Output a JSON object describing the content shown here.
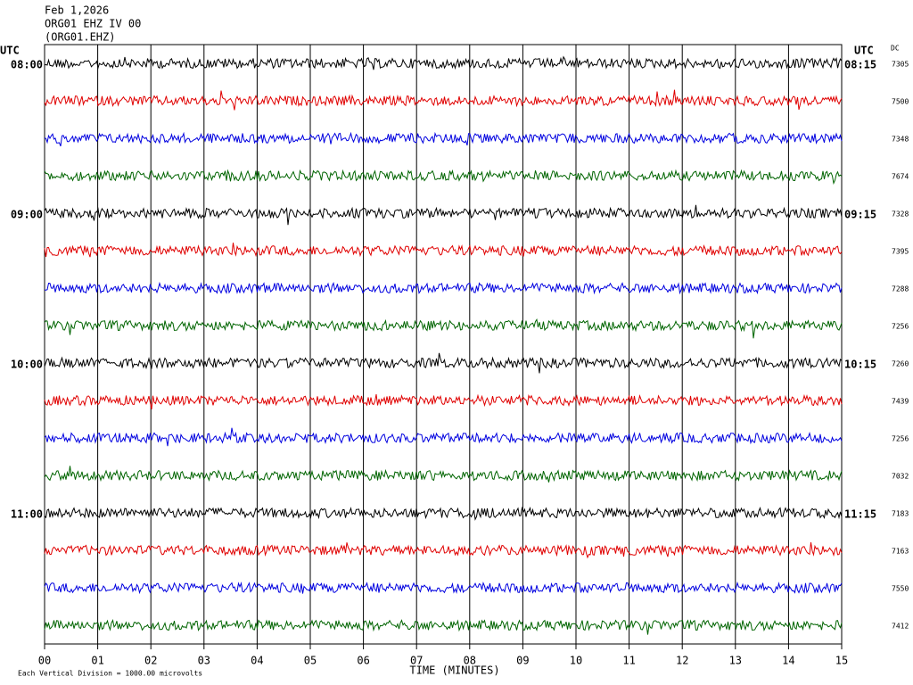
{
  "chart_data": {
    "type": "helicorder",
    "title": "Feb 1,2026",
    "subtitle": "ORG01 EHZ IV 00",
    "station": "(ORG01.EHZ)",
    "left_axis_title": "UTC",
    "right_axis_title": "UTC",
    "dc_title": "DC",
    "xlabel": "TIME (MINUTES)",
    "footnote": "Each Vertical Division = 1000.00 microvolts",
    "xlim": [
      0,
      15
    ],
    "xticks": [
      {
        "value": 0,
        "label": "00"
      },
      {
        "value": 1,
        "label": "01"
      },
      {
        "value": 2,
        "label": "02"
      },
      {
        "value": 3,
        "label": "03"
      },
      {
        "value": 4,
        "label": "04"
      },
      {
        "value": 5,
        "label": "05"
      },
      {
        "value": 6,
        "label": "06"
      },
      {
        "value": 7,
        "label": "07"
      },
      {
        "value": 8,
        "label": "08"
      },
      {
        "value": 9,
        "label": "09"
      },
      {
        "value": 10,
        "label": "10"
      },
      {
        "value": 11,
        "label": "11"
      },
      {
        "value": 12,
        "label": "12"
      },
      {
        "value": 13,
        "label": "13"
      },
      {
        "value": 14,
        "label": "14"
      },
      {
        "value": 15,
        "label": "15"
      }
    ],
    "grid": true,
    "row_colors": [
      "#000000",
      "#e00000",
      "#0000e0",
      "#006400"
    ],
    "left_labels": [
      "08:00",
      null,
      null,
      null,
      "09:00",
      null,
      null,
      null,
      "10:00",
      null,
      null,
      null,
      "11:00",
      null,
      null,
      null
    ],
    "right_labels": [
      "08:15",
      null,
      null,
      null,
      "09:15",
      null,
      null,
      null,
      "10:15",
      null,
      null,
      null,
      "11:15",
      null,
      null,
      null
    ],
    "dc": [
      7305,
      7500,
      7348,
      7674,
      7328,
      7395,
      7288,
      7256,
      7260,
      7439,
      7256,
      7032,
      7183,
      7163,
      7550,
      7412
    ]
  }
}
